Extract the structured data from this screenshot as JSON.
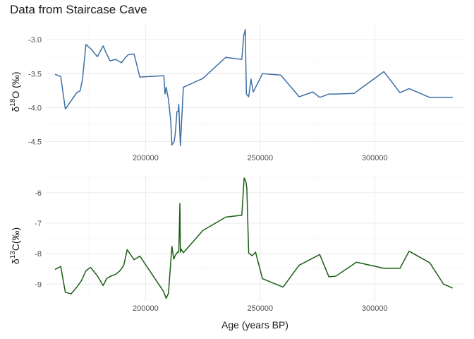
{
  "title": "Data from Staircase Cave",
  "chart_data": [
    {
      "type": "line",
      "series": [
        {
          "color": "#3C6FA6",
          "x": [
            160500,
            163000,
            165000,
            170000,
            171500,
            172500,
            174000,
            176000,
            179000,
            181500,
            183000,
            184500,
            187000,
            189500,
            191000,
            192500,
            195000,
            197500,
            208000,
            208500,
            209000,
            210000,
            211000,
            211500,
            212500,
            213000,
            213700,
            214200,
            214500,
            215200,
            216500,
            225000,
            235000,
            242000,
            242800,
            243500,
            244000,
            245000,
            246000,
            247000,
            251000,
            259000,
            267000,
            273000,
            276000,
            280000,
            283000,
            291000,
            304000,
            311000,
            315000,
            324000,
            334000
          ],
          "y": [
            -3.51,
            -3.54,
            -4.02,
            -3.78,
            -3.75,
            -3.58,
            -3.07,
            -3.13,
            -3.25,
            -3.09,
            -3.21,
            -3.31,
            -3.29,
            -3.34,
            -3.27,
            -3.22,
            -3.21,
            -3.55,
            -3.53,
            -3.8,
            -3.7,
            -3.88,
            -4.2,
            -4.55,
            -4.5,
            -4.37,
            -4.06,
            -4.06,
            -3.95,
            -4.56,
            -3.7,
            -3.57,
            -3.26,
            -3.29,
            -2.95,
            -2.85,
            -3.8,
            -3.84,
            -3.58,
            -3.77,
            -3.5,
            -3.52,
            -3.84,
            -3.77,
            -3.85,
            -3.8,
            -3.8,
            -3.79,
            -3.47,
            -3.78,
            -3.72,
            -3.85,
            -3.85
          ]
        }
      ],
      "xlim": [
        156500,
        339000
      ],
      "ylim": [
        -4.63,
        -2.79
      ],
      "yticks": [
        -3.0,
        -3.5,
        -4.0,
        -4.5
      ],
      "ytick_labels": [
        "-3.0",
        "-3.5",
        "-4.0",
        "-4.5"
      ],
      "xticks": [
        200000,
        250000,
        300000
      ],
      "xtick_labels": [
        "200000",
        "250000",
        "300000"
      ],
      "ylabel_base": "δ",
      "ylabel_sup": "18",
      "ylabel_rest": "O (‰)",
      "grid": true
    },
    {
      "type": "line",
      "series": [
        {
          "color": "#1A5E14",
          "x": [
            160500,
            163000,
            165000,
            167500,
            170000,
            172000,
            174000,
            176000,
            179000,
            181500,
            183000,
            184500,
            187000,
            189000,
            190500,
            192000,
            195000,
            197500,
            207500,
            208000,
            209000,
            210000,
            211500,
            212300,
            213000,
            214000,
            214500,
            215000,
            215200,
            215500,
            216500,
            225000,
            235000,
            242000,
            243000,
            243700,
            244200,
            245000,
            246500,
            248000,
            251000,
            260000,
            267000,
            276000,
            280000,
            283000,
            292000,
            304000,
            311000,
            315000,
            324000,
            330000,
            334000
          ],
          "y": [
            -8.52,
            -8.42,
            -9.27,
            -9.32,
            -9.1,
            -8.89,
            -8.56,
            -8.45,
            -8.73,
            -9.05,
            -8.82,
            -8.75,
            -8.68,
            -8.55,
            -8.38,
            -7.87,
            -8.2,
            -8.08,
            -9.2,
            -9.27,
            -9.47,
            -9.3,
            -7.76,
            -8.18,
            -8.05,
            -7.95,
            -7.95,
            -6.35,
            -7.95,
            -7.85,
            -7.97,
            -7.24,
            -6.8,
            -6.74,
            -5.52,
            -5.6,
            -5.86,
            -7.98,
            -8.07,
            -7.95,
            -8.82,
            -9.1,
            -8.38,
            -8.03,
            -8.76,
            -8.74,
            -8.28,
            -8.48,
            -8.48,
            -7.92,
            -8.3,
            -9.0,
            -9.13
          ]
        }
      ],
      "xlim": [
        156500,
        339000
      ],
      "ylim": [
        -9.55,
        -5.4
      ],
      "yticks": [
        -6,
        -7,
        -8,
        -9
      ],
      "ytick_labels": [
        "-6",
        "-7",
        "-8",
        "-9"
      ],
      "xticks": [
        200000,
        250000,
        300000
      ],
      "xtick_labels": [
        "200000",
        "250000",
        "300000"
      ],
      "ylabel_base": "δ",
      "ylabel_sup": "13",
      "ylabel_rest": "C(‰)",
      "xlabel": "Age (years BP)",
      "grid": true
    }
  ]
}
